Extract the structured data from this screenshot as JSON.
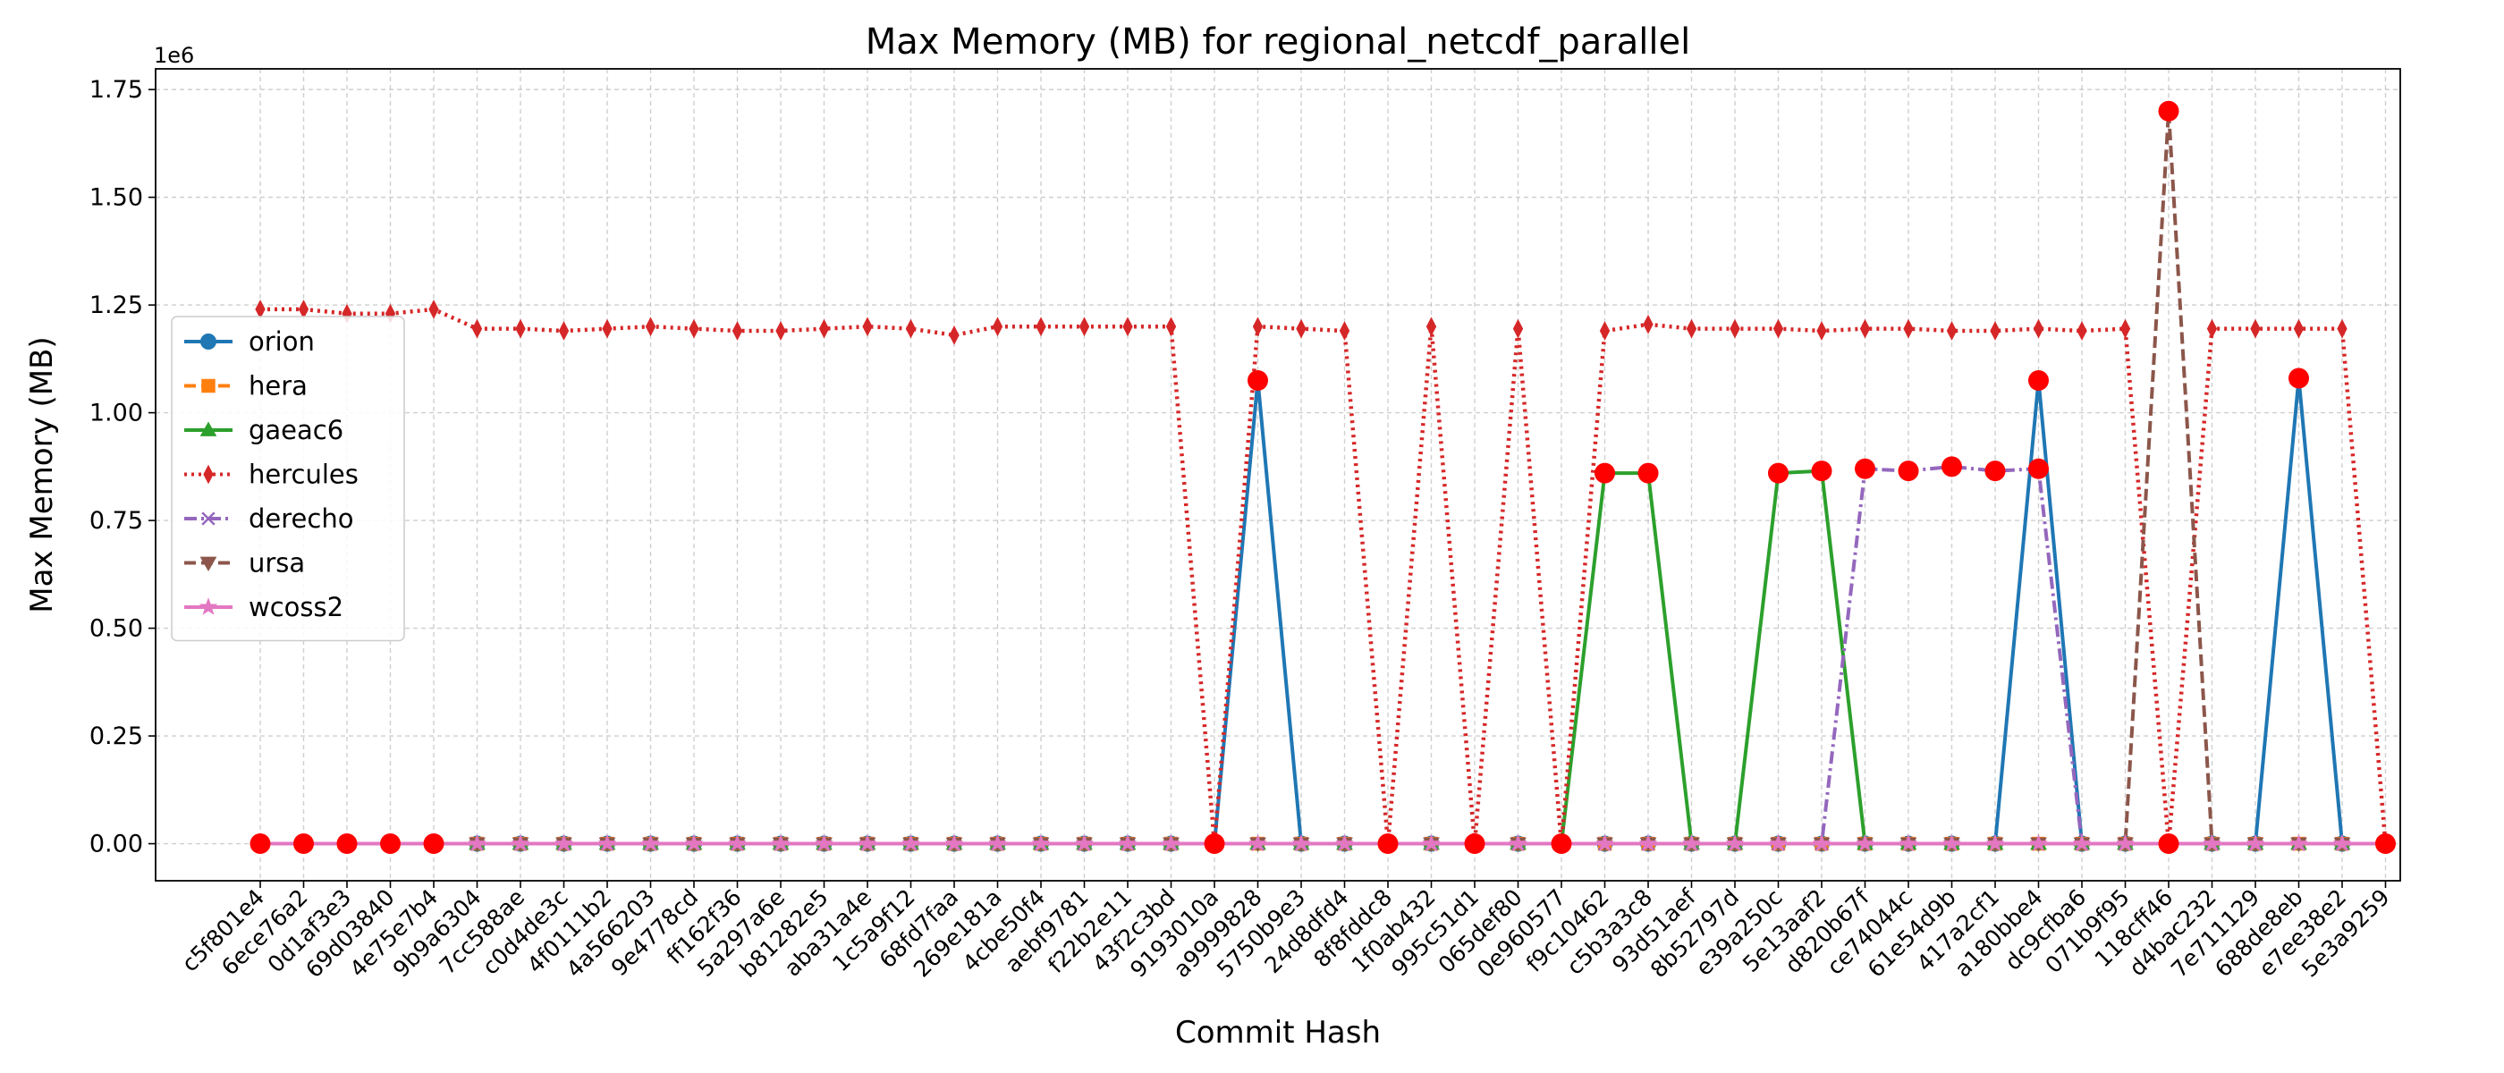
{
  "chart_data": {
    "type": "line",
    "title": "Max Memory (MB) for regional_netcdf_parallel",
    "x_label": "Commit Hash",
    "y_label": "Max Memory (MB)",
    "y_offset_label": "1e6",
    "categories": [
      "c5f801e4",
      "6ece76a2",
      "0d1af3e3",
      "69d03840",
      "4e75e7b4",
      "9b9a6304",
      "7cc588ae",
      "c0d4de3c",
      "4f0111b2",
      "4a566203",
      "9e4778cd",
      "ff162f36",
      "5a297a6e",
      "b81282e5",
      "aba31a4e",
      "1c5a9f12",
      "68fd7faa",
      "269e181a",
      "4cbe50f4",
      "aebf9781",
      "f22b2e11",
      "43f2c3bd",
      "9193010a",
      "a9999828",
      "5750b9e3",
      "24d8dfd4",
      "8f8fddc8",
      "1f0ab432",
      "995c51d1",
      "065def80",
      "0e960577",
      "f9c10462",
      "c5b3a3c8",
      "93d51aef",
      "8b52797d",
      "e39a250c",
      "5e13aaf2",
      "d820b67f",
      "ce74044c",
      "61e54d9b",
      "417a2cf1",
      "a180bbe4",
      "dc9cfba6",
      "071b9f95",
      "118cff46",
      "d4bac232",
      "7e711129",
      "688de8eb",
      "e7ee38e2",
      "5e3a9259"
    ],
    "series": [
      {
        "name": "orion",
        "color": "#1f77b4",
        "marker": "circle",
        "linestyle": "solid",
        "values": [
          0,
          0,
          0,
          0,
          0,
          0,
          0,
          0,
          0,
          0,
          0,
          0,
          0,
          0,
          0,
          0,
          0,
          0,
          0,
          0,
          0,
          0,
          0,
          1.075,
          0,
          0,
          0,
          0,
          0,
          0,
          0,
          0,
          0,
          0,
          0,
          0,
          0,
          0,
          0,
          0,
          0,
          1.075,
          0,
          0,
          0,
          0,
          0,
          1.08,
          0,
          0
        ]
      },
      {
        "name": "hera",
        "color": "#ff7f0e",
        "marker": "square",
        "linestyle": "dashed",
        "values": [
          0,
          0,
          0,
          0,
          0,
          0,
          0,
          0,
          0,
          0,
          0,
          0,
          0,
          0,
          0,
          0,
          0,
          0,
          0,
          0,
          0,
          0,
          0,
          0,
          0,
          0,
          0,
          0,
          0,
          0,
          0,
          0,
          0,
          0,
          0,
          0,
          0,
          0,
          0,
          0,
          0,
          0,
          0,
          0,
          0,
          0,
          0,
          0,
          0,
          0
        ]
      },
      {
        "name": "gaeac6",
        "color": "#2ca02c",
        "marker": "triangle-up",
        "linestyle": "solid",
        "values": [
          0,
          0,
          0,
          0,
          0,
          0,
          0,
          0,
          0,
          0,
          0,
          0,
          0,
          0,
          0,
          0,
          0,
          0,
          0,
          0,
          0,
          0,
          0,
          0,
          0,
          0,
          0,
          0,
          0,
          0,
          0,
          0.86,
          0.86,
          0,
          0,
          0.86,
          0.865,
          0,
          0,
          0,
          0,
          0,
          0,
          0,
          0,
          0,
          0,
          0,
          0,
          0
        ]
      },
      {
        "name": "hercules",
        "color": "#d62728",
        "marker": "thin-diamond",
        "linestyle": "dotted",
        "values": [
          1.24,
          1.24,
          1.23,
          1.23,
          1.24,
          1.195,
          1.195,
          1.19,
          1.195,
          1.2,
          1.195,
          1.19,
          1.19,
          1.195,
          1.2,
          1.195,
          1.18,
          1.2,
          1.2,
          1.2,
          1.2,
          1.2,
          0,
          1.2,
          1.195,
          1.19,
          0,
          1.2,
          0,
          1.195,
          0,
          1.19,
          1.205,
          1.195,
          1.195,
          1.195,
          1.19,
          1.195,
          1.195,
          1.19,
          1.19,
          1.195,
          1.19,
          1.195,
          0,
          1.195,
          1.195,
          1.195,
          1.195,
          0
        ]
      },
      {
        "name": "derecho",
        "color": "#9467bd",
        "marker": "x",
        "linestyle": "dashdot",
        "values": [
          0,
          0,
          0,
          0,
          0,
          0,
          0,
          0,
          0,
          0,
          0,
          0,
          0,
          0,
          0,
          0,
          0,
          0,
          0,
          0,
          0,
          0,
          0,
          0,
          0,
          0,
          0,
          0,
          0,
          0,
          0,
          0,
          0,
          0,
          0,
          0,
          0,
          0.87,
          0.865,
          0.875,
          0.865,
          0.87,
          0,
          0,
          0,
          0,
          0,
          0,
          0,
          0
        ]
      },
      {
        "name": "ursa",
        "color": "#8c564b",
        "marker": "triangle-down",
        "linestyle": "dashed",
        "values": [
          0,
          0,
          0,
          0,
          0,
          0,
          0,
          0,
          0,
          0,
          0,
          0,
          0,
          0,
          0,
          0,
          0,
          0,
          0,
          0,
          0,
          0,
          0,
          0,
          0,
          0,
          0,
          0,
          0,
          0,
          0,
          0,
          0,
          0,
          0,
          0,
          0,
          0,
          0,
          0,
          0,
          0,
          0,
          0,
          1.7,
          0,
          0,
          0,
          0,
          0
        ]
      },
      {
        "name": "wcoss2",
        "color": "#e377c2",
        "marker": "star",
        "linestyle": "solid",
        "values": [
          0,
          0,
          0,
          0,
          0,
          0,
          0,
          0,
          0,
          0,
          0,
          0,
          0,
          0,
          0,
          0,
          0,
          0,
          0,
          0,
          0,
          0,
          0,
          0,
          0,
          0,
          0,
          0,
          0,
          0,
          0,
          0,
          0,
          0,
          0,
          0,
          0,
          0,
          0,
          0,
          0,
          0,
          0,
          0,
          0,
          0,
          0,
          0,
          0,
          0
        ]
      }
    ],
    "highlights": {
      "color": "#ff0000",
      "categories": [
        "c5f801e4",
        "6ece76a2",
        "0d1af3e3",
        "69d03840",
        "4e75e7b4",
        "9193010a",
        "a9999828",
        "8f8fddc8",
        "995c51d1",
        "0e960577",
        "f9c10462",
        "c5b3a3c8",
        "e39a250c",
        "5e13aaf2",
        "d820b67f",
        "ce74044c",
        "61e54d9b",
        "417a2cf1",
        "a180bbe4",
        "a180bbe4",
        "118cff46",
        "118cff46",
        "688de8eb",
        "5e3a9259"
      ],
      "values": [
        0,
        0,
        0,
        0,
        0,
        0,
        1.075,
        0,
        0,
        0,
        0.86,
        0.86,
        0.86,
        0.865,
        0.87,
        0.865,
        0.875,
        0.865,
        0.87,
        1.075,
        1.7,
        0,
        1.08,
        0
      ]
    },
    "ylim": [
      -0.086,
      1.798
    ],
    "yticks": [
      {
        "value": 0,
        "label": "0.00"
      },
      {
        "value": 0.25,
        "label": "0.25"
      },
      {
        "value": 0.5,
        "label": "0.50"
      },
      {
        "value": 0.75,
        "label": "0.75"
      },
      {
        "value": 1,
        "label": "1.00"
      },
      {
        "value": 1.25,
        "label": "1.25"
      },
      {
        "value": 1.5,
        "label": "1.50"
      },
      {
        "value": 1.75,
        "label": "1.75"
      }
    ],
    "grid": true,
    "legend": "center left"
  }
}
